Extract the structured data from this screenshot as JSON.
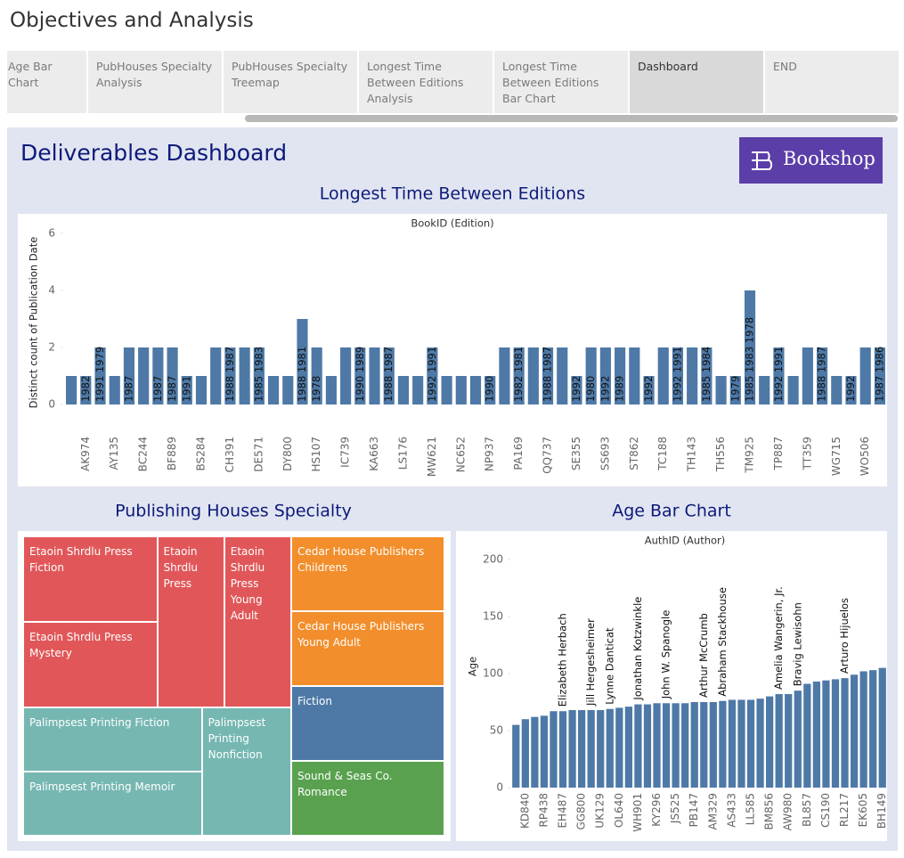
{
  "header": {
    "title": "Objectives and Analysis"
  },
  "tabs": [
    {
      "label": "Age Bar Chart",
      "active": false
    },
    {
      "label": "PubHouses Specialty Analysis",
      "active": false
    },
    {
      "label": "PubHouses Specialty Treemap",
      "active": false
    },
    {
      "label": "Longest Time Between Editions Analysis",
      "active": false
    },
    {
      "label": "Longest Time Between Editions Bar Chart",
      "active": false
    },
    {
      "label": "Dashboard",
      "active": true
    },
    {
      "label": "END",
      "active": false
    }
  ],
  "dashboard": {
    "title": "Deliverables Dashboard",
    "logo": "Bookshop"
  },
  "chart_data": [
    {
      "type": "bar",
      "title": "Longest Time Between Editions",
      "subtitle": "BookID (Edition)",
      "y_label": "Distinct count of Publication Date",
      "color": "#4e79a7",
      "ylim": [
        0,
        6
      ],
      "yticks": [
        0,
        2,
        4,
        6
      ],
      "categories": [
        null,
        "AK974",
        null,
        "AY135",
        null,
        "BC244",
        null,
        "BF889",
        null,
        "BS284",
        null,
        "CH391",
        null,
        "DE571",
        null,
        "DY800",
        null,
        "HS107",
        null,
        "IC739",
        null,
        "KA663",
        null,
        "LS176",
        null,
        "MW621",
        null,
        "NC652",
        null,
        "NP937",
        null,
        "PA169",
        null,
        "QQ737",
        null,
        "SE355",
        null,
        "SS693",
        null,
        "ST862",
        null,
        "TC188",
        null,
        "TH143",
        null,
        "TH556",
        null,
        "TM925",
        null,
        "TP887",
        null,
        "TT359",
        null,
        "WG715",
        null,
        "WO506",
        null
      ],
      "values": [
        1,
        1,
        2,
        1,
        2,
        2,
        2,
        2,
        1,
        1,
        2,
        2,
        2,
        2,
        1,
        1,
        3,
        2,
        1,
        2,
        2,
        2,
        2,
        1,
        1,
        2,
        1,
        1,
        1,
        1,
        2,
        2,
        2,
        2,
        2,
        1,
        2,
        2,
        2,
        2,
        1,
        2,
        2,
        2,
        2,
        1,
        1,
        4,
        1,
        2,
        1,
        2,
        2,
        1,
        1,
        2,
        2
      ],
      "bar_labels": [
        null,
        "1982",
        "1991 1979",
        null,
        "1987",
        null,
        "1987",
        "1987",
        "1991",
        null,
        null,
        "1988 1987",
        null,
        "1985 1983",
        null,
        null,
        "1988 1981",
        "1978",
        null,
        null,
        "1990 1989",
        null,
        "1988 1987",
        null,
        null,
        "1992 1991",
        null,
        null,
        null,
        "1990",
        null,
        "1982 1981",
        null,
        "1988 1987",
        null,
        "1992",
        "1980",
        "1992",
        "1989",
        null,
        "1992",
        null,
        "1992 1991",
        null,
        "1985 1984",
        null,
        "1979",
        "1985 1983 1978",
        null,
        "1992 1991",
        null,
        null,
        "1988 1987",
        null,
        "1992",
        null,
        "1987 1986"
      ]
    },
    {
      "type": "treemap",
      "title": "Publishing Houses Specialty",
      "nodes": [
        {
          "label": "Etaoin Shrdlu Press Fiction",
          "value": 1,
          "color": "#e15759"
        },
        {
          "label": "Etaoin Shrdlu Press Mystery",
          "value": 1,
          "color": "#e15759"
        },
        {
          "label": "Etaoin Shrdlu Press",
          "value": 1,
          "color": "#e15759"
        },
        {
          "label": "Etaoin Shrdlu Press Young Adult",
          "value": 1,
          "color": "#e15759"
        },
        {
          "label": "Palimpsest Printing Fiction",
          "value": 1,
          "color": "#76b7b2"
        },
        {
          "label": "Palimpsest Printing Memoir",
          "value": 1,
          "color": "#76b7b2"
        },
        {
          "label": "Palimpsest Printing Nonfiction",
          "value": 1,
          "color": "#76b7b2"
        },
        {
          "label": "Cedar House Publishers Childrens",
          "value": 1,
          "color": "#f28e2b"
        },
        {
          "label": "Cedar House Publishers Young Adult",
          "value": 1,
          "color": "#f28e2b"
        },
        {
          "label": "Fiction",
          "value": 1,
          "color": "#4e79a7"
        },
        {
          "label": "Sound & Seas Co. Romance",
          "value": 1,
          "color": "#59a14f"
        }
      ]
    },
    {
      "type": "bar",
      "title": "Age Bar Chart",
      "subtitle": "AuthID (Author)",
      "y_label": "Age",
      "color": "#4e79a7",
      "ylim": [
        0,
        200
      ],
      "yticks": [
        0,
        50,
        100,
        150,
        200
      ],
      "categories": [
        null,
        "KD840",
        null,
        "RP438",
        null,
        "EH487",
        null,
        "GG800",
        null,
        "UK129",
        null,
        "OL640",
        null,
        "WH901",
        null,
        "KY296",
        null,
        "JS525",
        null,
        "PB147",
        null,
        "AM329",
        null,
        "AS433",
        null,
        "LL585",
        null,
        "BM856",
        null,
        "AW980",
        null,
        "BL857",
        null,
        "CS190",
        null,
        "RL217",
        null,
        "EK605",
        null,
        "BH149"
      ],
      "values": [
        55,
        60,
        62,
        63,
        67,
        67,
        68,
        68,
        68,
        68,
        69,
        70,
        71,
        73,
        73,
        74,
        74,
        74,
        74,
        75,
        75,
        75,
        76,
        77,
        77,
        77,
        78,
        80,
        82,
        82,
        85,
        91,
        93,
        94,
        95,
        96,
        99,
        102,
        103,
        105
      ],
      "bar_labels": [
        null,
        null,
        null,
        null,
        null,
        "Elizabeth Herbach",
        null,
        null,
        "Jill Hergesheimer",
        null,
        "Lynne Danticat",
        null,
        null,
        "Jonathan Kotzwinkle",
        null,
        null,
        "John W. Spanogle",
        null,
        null,
        null,
        "Arthur McCrumb",
        null,
        "Abraham Stackhouse",
        null,
        null,
        null,
        null,
        null,
        "Amelia Wangerin, Jr.",
        null,
        "Bravig Lewisohn",
        null,
        null,
        null,
        null,
        "Arturo Hijuelos",
        null,
        null,
        null,
        null
      ]
    }
  ]
}
